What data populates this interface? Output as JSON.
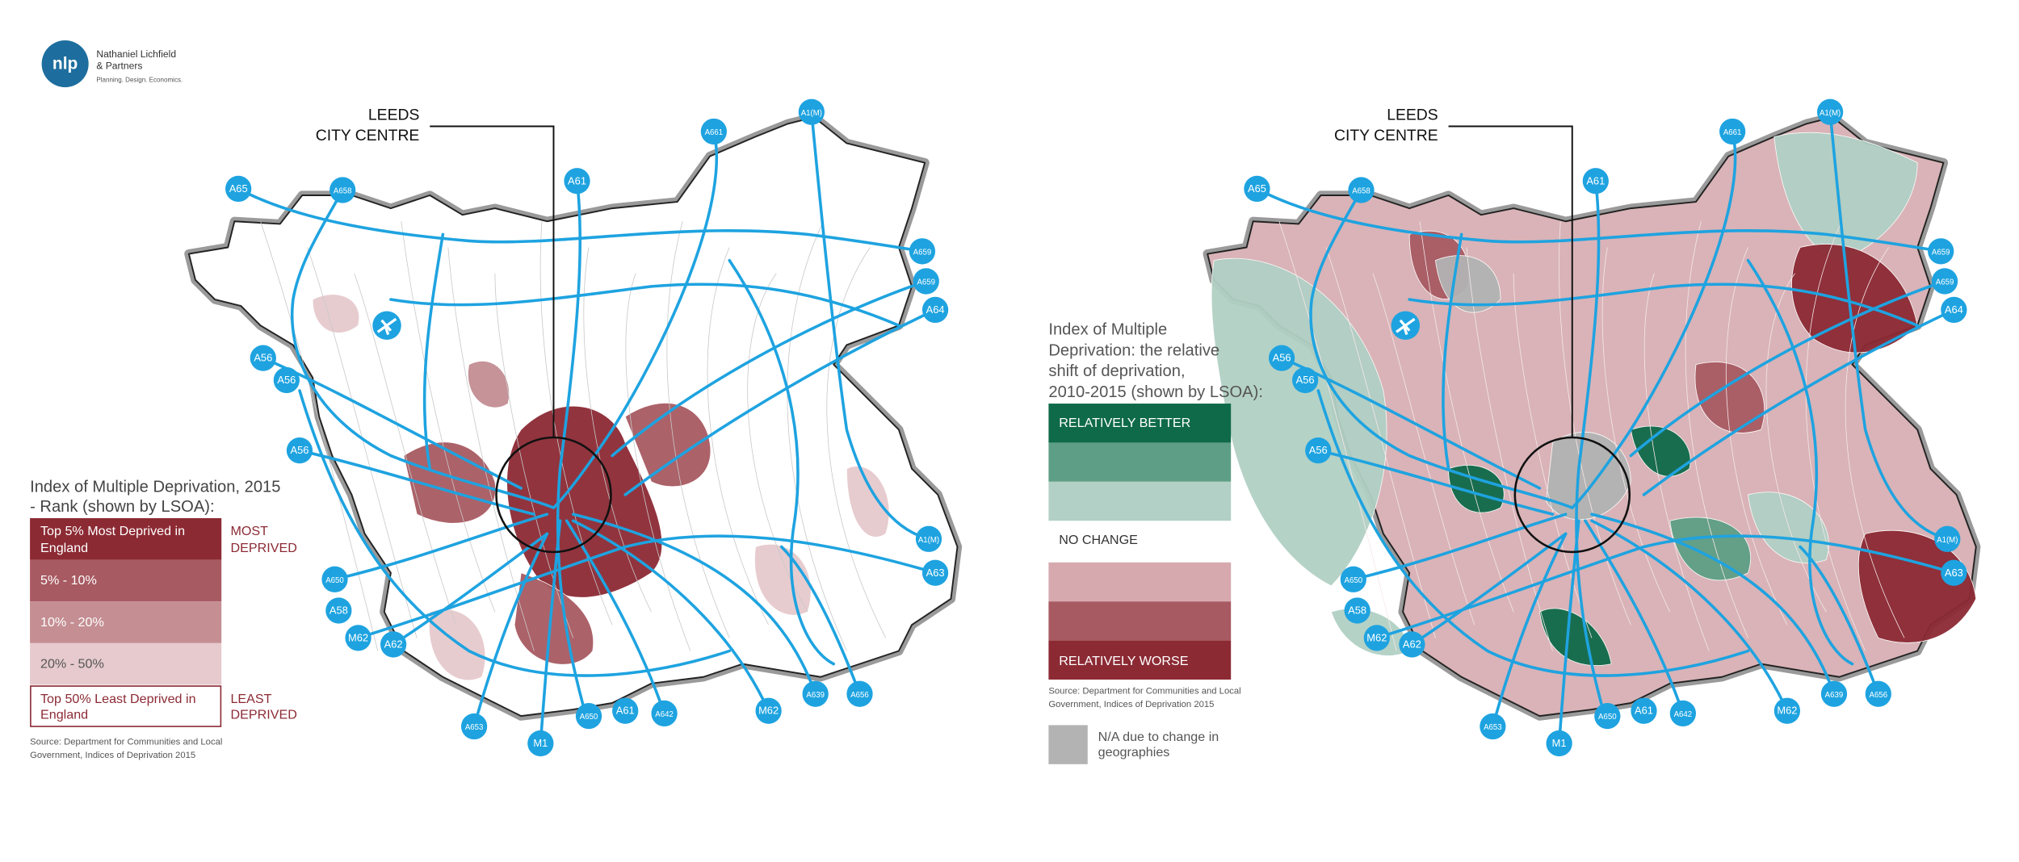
{
  "logo": {
    "mark": "nlp",
    "name": [
      "Nathaniel Lichfield",
      "& Partners"
    ],
    "tagline": "Planning. Design. Economics."
  },
  "maps": [
    {
      "centre_label": [
        "LEEDS",
        "CITY CENTRE"
      ],
      "roads": [
        "A65",
        "A658",
        "A61",
        "A661",
        "A1(M)",
        "A659",
        "A659",
        "A64",
        "A56",
        "A56",
        "A56",
        "A650",
        "A58",
        "M62",
        "A62",
        "A653",
        "M1",
        "A650",
        "A61",
        "A642",
        "M62",
        "A639",
        "A656",
        "A1(M)",
        "A63"
      ],
      "legend": {
        "title": [
          "Index of Multiple Deprivation, 2015",
          "- Rank (shown by LSOA):"
        ],
        "items": [
          [
            "Top 5% Most Deprived in",
            "England"
          ],
          [
            "5% - 10%"
          ],
          [
            "10% - 20%"
          ],
          [
            "20% - 50%"
          ],
          [
            "Top 50% Least Deprived in",
            "England"
          ]
        ],
        "side_labels": [
          [
            "MOST",
            "DEPRIVED"
          ],
          [
            "LEAST",
            "DEPRIVED"
          ]
        ],
        "source": [
          "Source: Department for Communities and Local",
          "Government, Indices of Deprivation 2015"
        ]
      }
    },
    {
      "centre_label": [
        "LEEDS",
        "CITY CENTRE"
      ],
      "roads": [
        "A65",
        "A658",
        "A61",
        "A661",
        "A1(M)",
        "A659",
        "A659",
        "A64",
        "A56",
        "A56",
        "A56",
        "A650",
        "A58",
        "M62",
        "A62",
        "A653",
        "M1",
        "A650",
        "A61",
        "A642",
        "M62",
        "A639",
        "A656",
        "A1(M)",
        "A63"
      ],
      "legend": {
        "title": [
          "Index of Multiple",
          "Deprivation: the relative",
          "shift of deprivation,",
          "2010-2015 (shown by LSOA):"
        ],
        "items": [
          "RELATIVELY BETTER",
          "NO CHANGE",
          "RELATIVELY WORSE"
        ],
        "source": [
          "Source: Department for Communities and Local",
          "Government, Indices of Deprivation 2015"
        ],
        "na_note": [
          "N/A due to change in",
          "geographies"
        ]
      }
    }
  ]
}
